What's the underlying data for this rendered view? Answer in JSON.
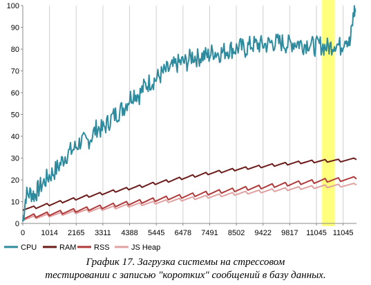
{
  "chart_data": {
    "type": "line",
    "title": "",
    "xlabel": "",
    "ylabel": "",
    "ylim": [
      0,
      100
    ],
    "yticks": [
      "0",
      "10",
      "20",
      "30",
      "40",
      "50",
      "60",
      "70",
      "80",
      "90",
      "100"
    ],
    "xticks": [
      "0",
      "1014",
      "2165",
      "3311",
      "4388",
      "5445",
      "6478",
      "7491",
      "8502",
      "9422",
      "9817",
      "11045",
      "11045"
    ],
    "xlim": [
      0,
      12600
    ],
    "grid": "vertical",
    "legend_position": "bottom-left",
    "highlight": {
      "x_range": [
        11300,
        11780
      ],
      "color": "#ffff66"
    },
    "series": [
      {
        "name": "CPU",
        "color": "#2e8b9e",
        "values": [
          [
            0,
            1
          ],
          [
            120,
            13
          ],
          [
            300,
            14
          ],
          [
            450,
            13
          ],
          [
            600,
            16
          ],
          [
            800,
            19
          ],
          [
            1000,
            22
          ],
          [
            1200,
            24
          ],
          [
            1400,
            27
          ],
          [
            1600,
            31
          ],
          [
            1800,
            33
          ],
          [
            2000,
            35
          ],
          [
            2200,
            38
          ],
          [
            2400,
            37
          ],
          [
            2600,
            40
          ],
          [
            2800,
            44
          ],
          [
            3000,
            43
          ],
          [
            3200,
            46
          ],
          [
            3400,
            49
          ],
          [
            3600,
            51
          ],
          [
            3800,
            53
          ],
          [
            4000,
            57
          ],
          [
            4200,
            60
          ],
          [
            4400,
            59
          ],
          [
            4600,
            63
          ],
          [
            4800,
            65
          ],
          [
            5000,
            66
          ],
          [
            5200,
            68
          ],
          [
            5400,
            70
          ],
          [
            5600,
            71
          ],
          [
            5800,
            73
          ],
          [
            6000,
            74
          ],
          [
            6200,
            74
          ],
          [
            6400,
            77
          ],
          [
            6600,
            76
          ],
          [
            6800,
            77
          ],
          [
            7000,
            77
          ],
          [
            7200,
            79
          ],
          [
            7400,
            78
          ],
          [
            7600,
            79
          ],
          [
            7800,
            80
          ],
          [
            8000,
            80
          ],
          [
            8200,
            81
          ],
          [
            8400,
            80
          ],
          [
            8600,
            82
          ],
          [
            8800,
            82
          ],
          [
            9000,
            82
          ],
          [
            9200,
            82
          ],
          [
            9400,
            83
          ],
          [
            9600,
            83
          ],
          [
            9800,
            83
          ],
          [
            10000,
            82
          ],
          [
            10200,
            83
          ],
          [
            10400,
            83
          ],
          [
            10600,
            82
          ],
          [
            10800,
            83
          ],
          [
            11000,
            81
          ],
          [
            11200,
            82
          ],
          [
            11400,
            81
          ],
          [
            11600,
            81
          ],
          [
            11800,
            83
          ],
          [
            12000,
            81
          ],
          [
            12200,
            86
          ],
          [
            12350,
            82
          ],
          [
            12500,
            97
          ],
          [
            12560,
            98
          ]
        ]
      },
      {
        "name": "RAM",
        "color": "#6b1a1a",
        "values": [
          [
            0,
            6.5
          ],
          [
            500,
            7.3
          ],
          [
            1000,
            8.6
          ],
          [
            1500,
            9.9
          ],
          [
            2000,
            11.2
          ],
          [
            2500,
            12.5
          ],
          [
            3000,
            13.6
          ],
          [
            3500,
            14.8
          ],
          [
            4000,
            15.9
          ],
          [
            4500,
            17
          ],
          [
            5000,
            18.3
          ],
          [
            5500,
            19.4
          ],
          [
            6000,
            20.6
          ],
          [
            6500,
            21.7
          ],
          [
            7000,
            22.8
          ],
          [
            7500,
            23.7
          ],
          [
            8000,
            24.6
          ],
          [
            8500,
            25.3
          ],
          [
            9000,
            26
          ],
          [
            9500,
            26.7
          ],
          [
            10000,
            27.3
          ],
          [
            10500,
            27.9
          ],
          [
            11000,
            28.3
          ],
          [
            11500,
            28.6
          ],
          [
            12000,
            28.7
          ],
          [
            12600,
            29.3
          ]
        ]
      },
      {
        "name": "RSS",
        "color": "#b03a3a",
        "values": [
          [
            0,
            2.4
          ],
          [
            500,
            3.4
          ],
          [
            1000,
            4.2
          ],
          [
            1500,
            5
          ],
          [
            2000,
            5.8
          ],
          [
            2500,
            6.6
          ],
          [
            3000,
            7.4
          ],
          [
            3500,
            8.3
          ],
          [
            4000,
            9.1
          ],
          [
            4500,
            9.9
          ],
          [
            5000,
            10.7
          ],
          [
            5500,
            11.5
          ],
          [
            6000,
            12.2
          ],
          [
            6500,
            13
          ],
          [
            7000,
            13.7
          ],
          [
            7500,
            14.5
          ],
          [
            8000,
            15.2
          ],
          [
            8500,
            15.9
          ],
          [
            9000,
            16.5
          ],
          [
            9500,
            17.2
          ],
          [
            10000,
            17.8
          ],
          [
            10500,
            18.5
          ],
          [
            11000,
            19
          ],
          [
            11500,
            19.6
          ],
          [
            12000,
            19.9
          ],
          [
            12600,
            20.4
          ]
        ]
      },
      {
        "name": "JS Heap",
        "color": "#e0a0a0",
        "values": [
          [
            0,
            1.8
          ],
          [
            500,
            2.7
          ],
          [
            1000,
            3.5
          ],
          [
            1500,
            4.2
          ],
          [
            2000,
            5
          ],
          [
            2500,
            5.7
          ],
          [
            3000,
            6.5
          ],
          [
            3500,
            7.2
          ],
          [
            4000,
            8
          ],
          [
            4500,
            8.7
          ],
          [
            5000,
            9.4
          ],
          [
            5500,
            10.1
          ],
          [
            6000,
            10.8
          ],
          [
            6500,
            11.5
          ],
          [
            7000,
            12.1
          ],
          [
            7500,
            12.8
          ],
          [
            8000,
            13.4
          ],
          [
            8500,
            14
          ],
          [
            9000,
            14.5
          ],
          [
            9500,
            15.1
          ],
          [
            10000,
            15.6
          ],
          [
            10500,
            16.1
          ],
          [
            11000,
            16.5
          ],
          [
            11500,
            16.9
          ],
          [
            12000,
            17.2
          ],
          [
            12600,
            17.6
          ]
        ]
      }
    ]
  },
  "caption": {
    "line1": "График 17. Загрузка системы на стрессовом",
    "line2": "тестировании с записью \"коротких\" сообщений в базу данных."
  }
}
